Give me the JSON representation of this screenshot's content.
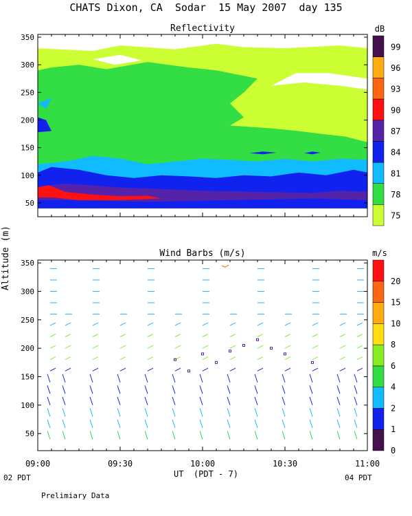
{
  "title": "CHATS Dixon, CA  Sodar  15 May 2007  day 135",
  "note": "Prelimiary Data",
  "shared_ylabel": "Altitude (m)",
  "local_time_start": "02 PDT",
  "local_time_end": "04 PDT",
  "colors": {
    "white": "#ffffff",
    "lime": "#ccff33",
    "green": "#33dd44",
    "cyan": "#11bbff",
    "blue": "#1122ee",
    "indigo": "#5522aa",
    "red": "#ff1111"
  },
  "chart_data": [
    {
      "type": "heatmap",
      "title": "Reflectivity",
      "xlabel": "UT  (PDT - 7)",
      "ylabel": "Altitude (m)",
      "x_ticks": [
        "09:00",
        "09:30",
        "10:00",
        "10:30",
        "11:00"
      ],
      "y_ticks": [
        50,
        100,
        150,
        200,
        250,
        300,
        350
      ],
      "ylim": [
        25,
        355
      ],
      "colorbar": {
        "unit": "dB",
        "levels": [
          75,
          78,
          81,
          84,
          87,
          90,
          93,
          96,
          99
        ],
        "colors": [
          "#ccff33",
          "#33dd44",
          "#11bbff",
          "#1122ee",
          "#5522aa",
          "#ff1111",
          "#ff6611",
          "#ffaa11",
          "#44114d"
        ]
      },
      "description_layers": [
        {
          "level": 75,
          "altitude_range": [
            40,
            330
          ]
        },
        {
          "level": 78,
          "altitude_range": [
            40,
            290
          ]
        },
        {
          "level": 81,
          "altitude_range": [
            40,
            130
          ]
        },
        {
          "level": 84,
          "altitude_range": [
            40,
            110
          ]
        },
        {
          "level": 87,
          "altitude_range": [
            55,
            85
          ]
        },
        {
          "level": 90,
          "altitude_range": [
            60,
            80
          ]
        }
      ]
    },
    {
      "type": "wind_barbs",
      "title": "Wind Barbs (m/s)",
      "xlabel": "UT  (PDT - 7)",
      "ylabel": "Altitude (m)",
      "x_ticks": [
        "09:00",
        "09:30",
        "10:00",
        "10:30",
        "11:00"
      ],
      "y_ticks": [
        50,
        100,
        150,
        200,
        250,
        300,
        350
      ],
      "ylim": [
        20,
        355
      ],
      "colorbar": {
        "unit": "m/s",
        "levels": [
          0,
          1,
          2,
          4,
          6,
          8,
          10,
          15,
          20
        ],
        "colors": [
          "#44114d",
          "#1122ee",
          "#11bbff",
          "#33dd44",
          "#88ee22",
          "#ffdd11",
          "#ffaa11",
          "#ff6611",
          "#ff1111"
        ]
      }
    }
  ]
}
